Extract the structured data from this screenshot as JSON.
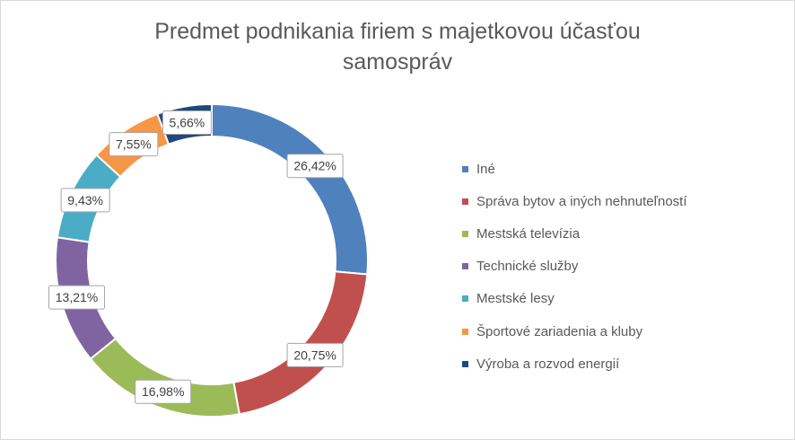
{
  "chart_data": {
    "type": "pie",
    "variant": "doughnut",
    "title_lines": [
      "Predmet podnikania firiem s majetkovou účasťou",
      "samospráv"
    ],
    "legend_position": "right",
    "slices": [
      {
        "name": "Iné",
        "value": 26.42,
        "label": "26,42%",
        "color": "#4F81BD"
      },
      {
        "name": "Správa bytov a iných nehnuteľností",
        "value": 20.75,
        "label": "20,75%",
        "color": "#C0504D"
      },
      {
        "name": "Mestská televízia",
        "value": 16.98,
        "label": "16,98%",
        "color": "#9BBB59"
      },
      {
        "name": "Technické služby",
        "value": 13.21,
        "label": "13,21%",
        "color": "#8064A2"
      },
      {
        "name": "Mestské lesy",
        "value": 9.43,
        "label": "9,43%",
        "color": "#4BACC6"
      },
      {
        "name": "Športové zariadenia a kluby",
        "value": 7.55,
        "label": "7,55%",
        "color": "#F79646"
      },
      {
        "name": "Výroba a rozvod energií",
        "value": 5.66,
        "label": "5,66%",
        "color": "#1F497D"
      }
    ]
  }
}
